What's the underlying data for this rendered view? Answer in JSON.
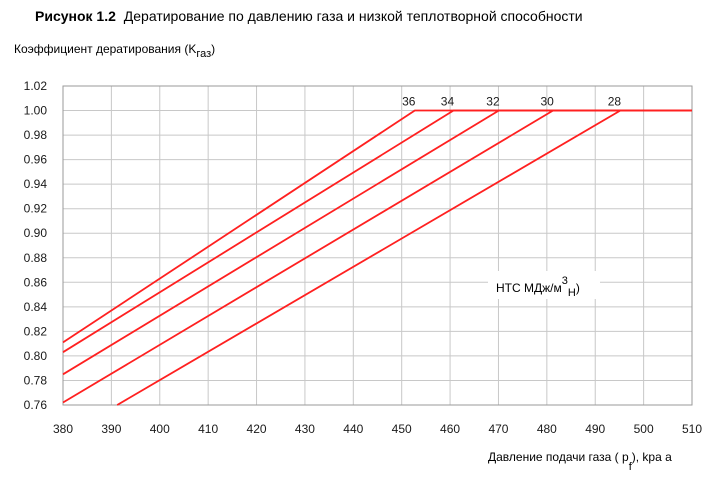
{
  "figure": {
    "title_prefix": "Рисунок 1.2",
    "title_text": "Дератирование по давлению газа и низкой теплотворной способности"
  },
  "chart_data": {
    "type": "line",
    "title": "Рисунок 1.2 Дератирование по давлению газа и низкой теплотворной способности",
    "ylabel": "Коэффициент дератирования (K",
    "ylabel_sub": "газ",
    "ylabel_close": ")",
    "xlabel": "Давление подачи газа ( p",
    "xlabel_sub": "f",
    "xlabel_tail": "), kpa a",
    "xlim": [
      380,
      510
    ],
    "ylim": [
      0.76,
      1.02
    ],
    "x_ticks": [
      380,
      390,
      400,
      410,
      420,
      430,
      440,
      450,
      460,
      470,
      480,
      490,
      500,
      510
    ],
    "y_ticks": [
      "0.76",
      "0.78",
      "0.80",
      "0.82",
      "0.84",
      "0.86",
      "0.88",
      "0.90",
      "0.92",
      "0.94",
      "0.96",
      "0.98",
      "1.00",
      "1.02"
    ],
    "grid": true,
    "legend_label": "НТС МДж/м",
    "legend_sup": "3",
    "legend_sub": "Н",
    "legend_close": ")",
    "line_color": "#ff2020",
    "series": [
      {
        "name": "36",
        "points": [
          [
            380,
            0.811
          ],
          [
            452.7,
            1.0
          ],
          [
            510,
            1.0
          ]
        ]
      },
      {
        "name": "34",
        "points": [
          [
            380,
            0.803
          ],
          [
            460.7,
            1.0
          ],
          [
            510,
            1.0
          ]
        ]
      },
      {
        "name": "32",
        "points": [
          [
            380,
            0.785
          ],
          [
            470.1,
            1.0
          ],
          [
            510,
            1.0
          ]
        ]
      },
      {
        "name": "30",
        "points": [
          [
            380,
            0.762
          ],
          [
            481.3,
            1.0
          ],
          [
            510,
            1.0
          ]
        ]
      },
      {
        "name": "28",
        "points": [
          [
            391.2,
            0.76
          ],
          [
            495.2,
            1.0
          ],
          [
            510,
            1.0
          ]
        ]
      }
    ]
  }
}
